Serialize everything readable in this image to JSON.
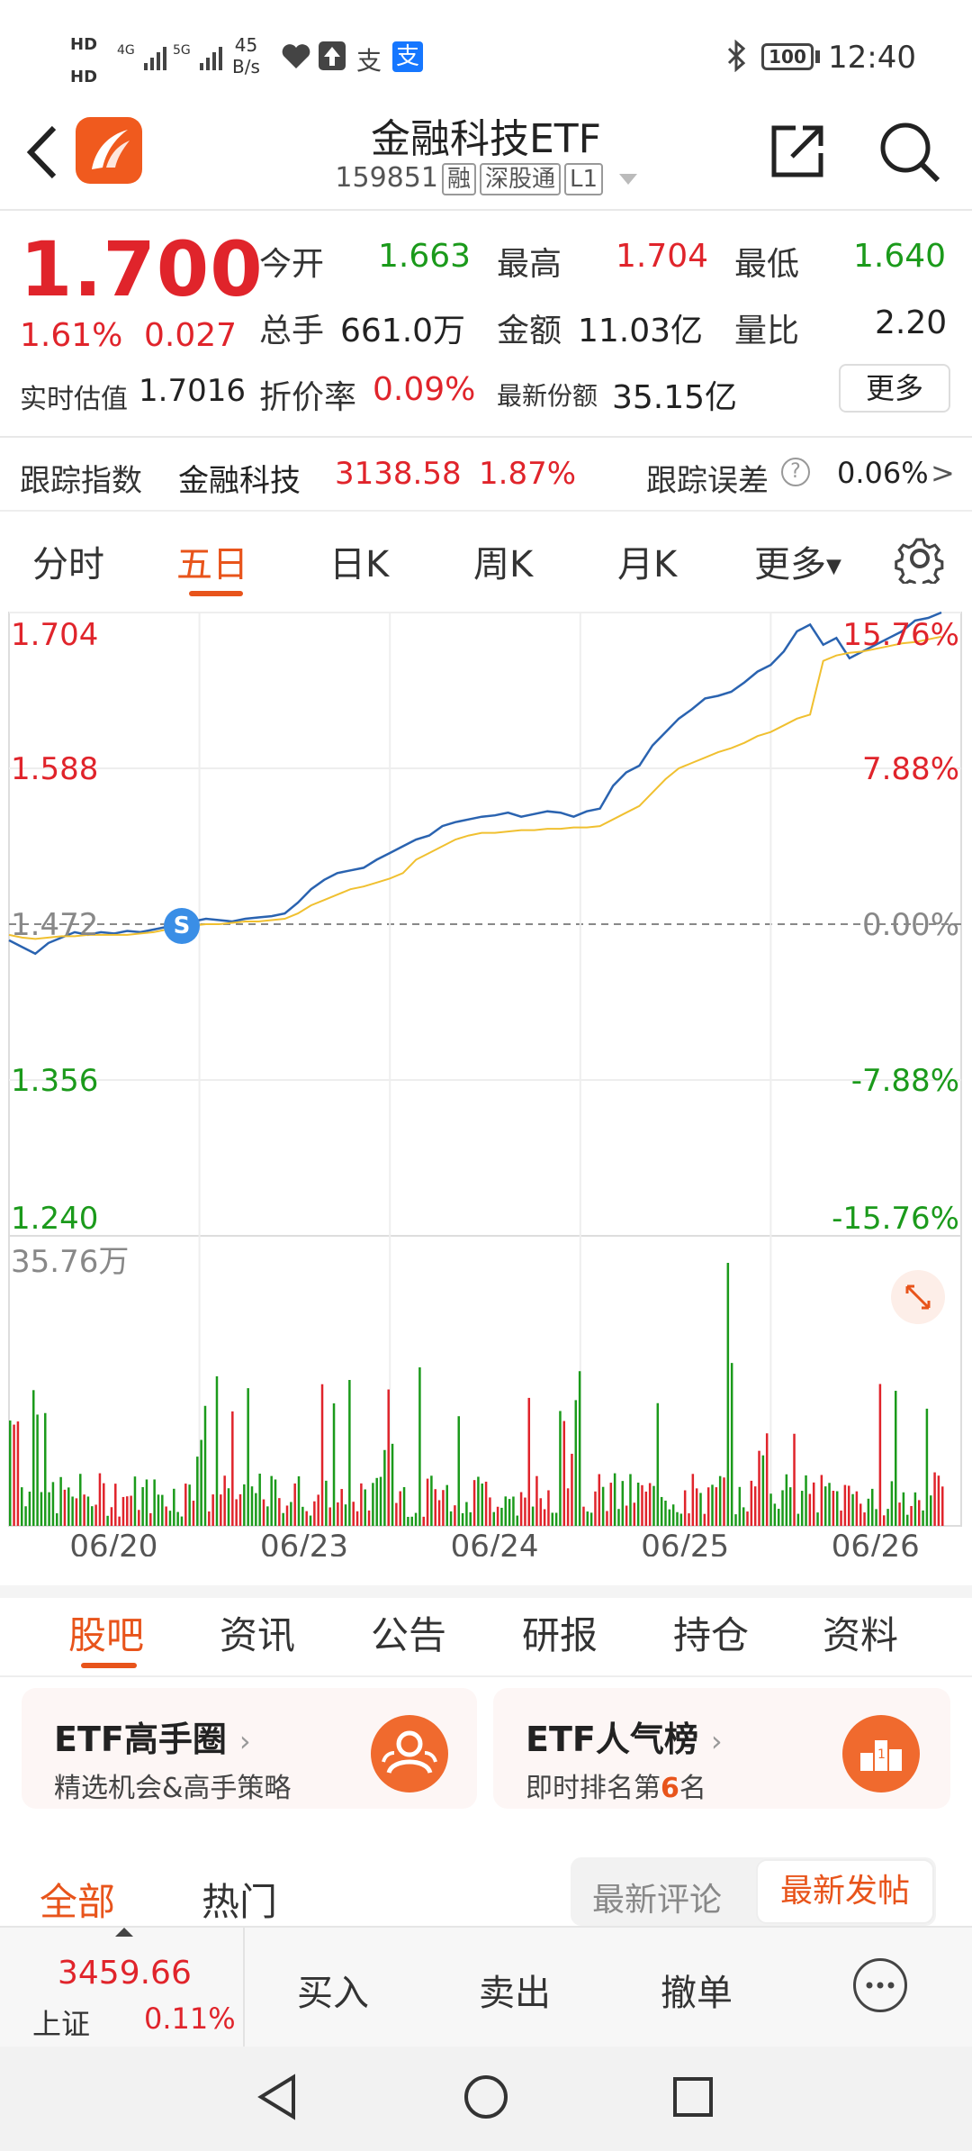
{
  "status_bar": {
    "hd1": "HD",
    "hd2": "HD",
    "speed_value": "45",
    "speed_unit": "B/s",
    "battery": "100",
    "time": "12:40"
  },
  "header": {
    "title": "金融科技ETF",
    "code": "159851",
    "tags": [
      "融",
      "深股通",
      "L1"
    ]
  },
  "quote": {
    "price": "1.700",
    "change_pct": "1.61%",
    "change_amt": "0.027",
    "open_label": "今开",
    "open": "1.663",
    "high_label": "最高",
    "high": "1.704",
    "low_label": "最低",
    "low": "1.640",
    "volume_label": "总手",
    "volume": "661.0万",
    "amount_label": "金额",
    "amount": "11.03亿",
    "ratio_label": "量比",
    "ratio": "2.20",
    "iopv_label": "实时估值",
    "iopv": "1.7016",
    "premium_label": "折价率",
    "premium": "0.09%",
    "shares_label": "最新份额",
    "shares": "35.15亿",
    "more": "更多"
  },
  "tracking": {
    "label": "跟踪指数",
    "index_name": "金融科技",
    "index_value": "3138.58",
    "index_pct": "1.87%",
    "error_label": "跟踪误差",
    "error_value": "0.06%",
    "help_icon": "question-circle-icon",
    "chevron": ">"
  },
  "chart_tabs": {
    "items": [
      "分时",
      "五日",
      "日K",
      "周K",
      "月K",
      "更多"
    ],
    "active": "五日"
  },
  "chart_data": {
    "type": "line",
    "title": "",
    "y_labels_left": [
      "1.704",
      "1.588",
      "1.472",
      "1.356",
      "1.240"
    ],
    "y_labels_right": [
      "15.76%",
      "7.88%",
      "0.00%",
      "-7.88%",
      "-15.76%"
    ],
    "ylim": [
      1.24,
      1.704
    ],
    "reference": 1.472,
    "x_labels": [
      "06/20",
      "06/23",
      "06/24",
      "06/25",
      "06/26"
    ],
    "volume_max_label": "35.76万",
    "series": [
      {
        "color": "#2a63b0",
        "values": [
          1.46,
          1.455,
          1.45,
          1.458,
          1.462,
          1.466,
          1.464,
          1.466,
          1.465,
          1.467,
          1.466,
          1.468,
          1.47,
          1.471,
          1.474,
          1.476,
          1.475,
          1.474,
          1.476,
          1.477,
          1.478,
          1.48,
          1.488,
          1.498,
          1.505,
          1.51,
          1.512,
          1.514,
          1.52,
          1.525,
          1.53,
          1.535,
          1.538,
          1.545,
          1.548,
          1.55,
          1.552,
          1.553,
          1.555,
          1.552,
          1.554,
          1.556,
          1.555,
          1.552,
          1.556,
          1.558,
          1.575,
          1.585,
          1.59,
          1.605,
          1.615,
          1.625,
          1.632,
          1.64,
          1.642,
          1.645,
          1.652,
          1.66,
          1.665,
          1.675,
          1.69,
          1.695,
          1.68,
          1.685,
          1.67,
          1.675,
          1.68,
          1.685,
          1.69,
          1.698,
          1.7,
          1.704
        ]
      },
      {
        "color": "#f0c030",
        "values": [
          1.464,
          1.462,
          1.461,
          1.462,
          1.463,
          1.463,
          1.464,
          1.464,
          1.464,
          1.464,
          1.465,
          1.466,
          1.468,
          1.47,
          1.471,
          1.472,
          1.472,
          1.473,
          1.474,
          1.474,
          1.475,
          1.476,
          1.48,
          1.486,
          1.49,
          1.494,
          1.498,
          1.5,
          1.503,
          1.506,
          1.51,
          1.52,
          1.525,
          1.53,
          1.535,
          1.538,
          1.54,
          1.54,
          1.541,
          1.542,
          1.542,
          1.543,
          1.543,
          1.544,
          1.544,
          1.545,
          1.55,
          1.555,
          1.56,
          1.57,
          1.58,
          1.588,
          1.592,
          1.596,
          1.6,
          1.603,
          1.607,
          1.612,
          1.615,
          1.62,
          1.625,
          1.628,
          1.668,
          1.672,
          1.674,
          1.675,
          1.677,
          1.679,
          1.681,
          1.682,
          1.684,
          1.686
        ]
      }
    ],
    "grid": true
  },
  "info_tabs": {
    "items": [
      "股吧",
      "资讯",
      "公告",
      "研报",
      "持仓",
      "资料"
    ],
    "active": "股吧"
  },
  "cards": [
    {
      "title": "ETF高手圈",
      "subtitle": "精选机会&高手策略",
      "icon": "group-icon"
    },
    {
      "title": "ETF人气榜",
      "subtitle_pre": "即时排名第",
      "rank": "6",
      "subtitle_post": "名",
      "icon": "podium-icon"
    }
  ],
  "posts": {
    "tabs": [
      "全部",
      "热门"
    ],
    "active": "全部",
    "sort_options": [
      "最新评论",
      "最新发帖"
    ],
    "sort_active": "最新发帖"
  },
  "footer": {
    "index_value": "3459.66",
    "index_name": "上证",
    "index_pct": "0.11%",
    "buttons": [
      "买入",
      "卖出",
      "撤单"
    ],
    "more_icon": "more-dots-icon"
  },
  "nav": {
    "back": "back-triangle-icon",
    "home": "home-circle-icon",
    "recent": "recent-square-icon"
  }
}
